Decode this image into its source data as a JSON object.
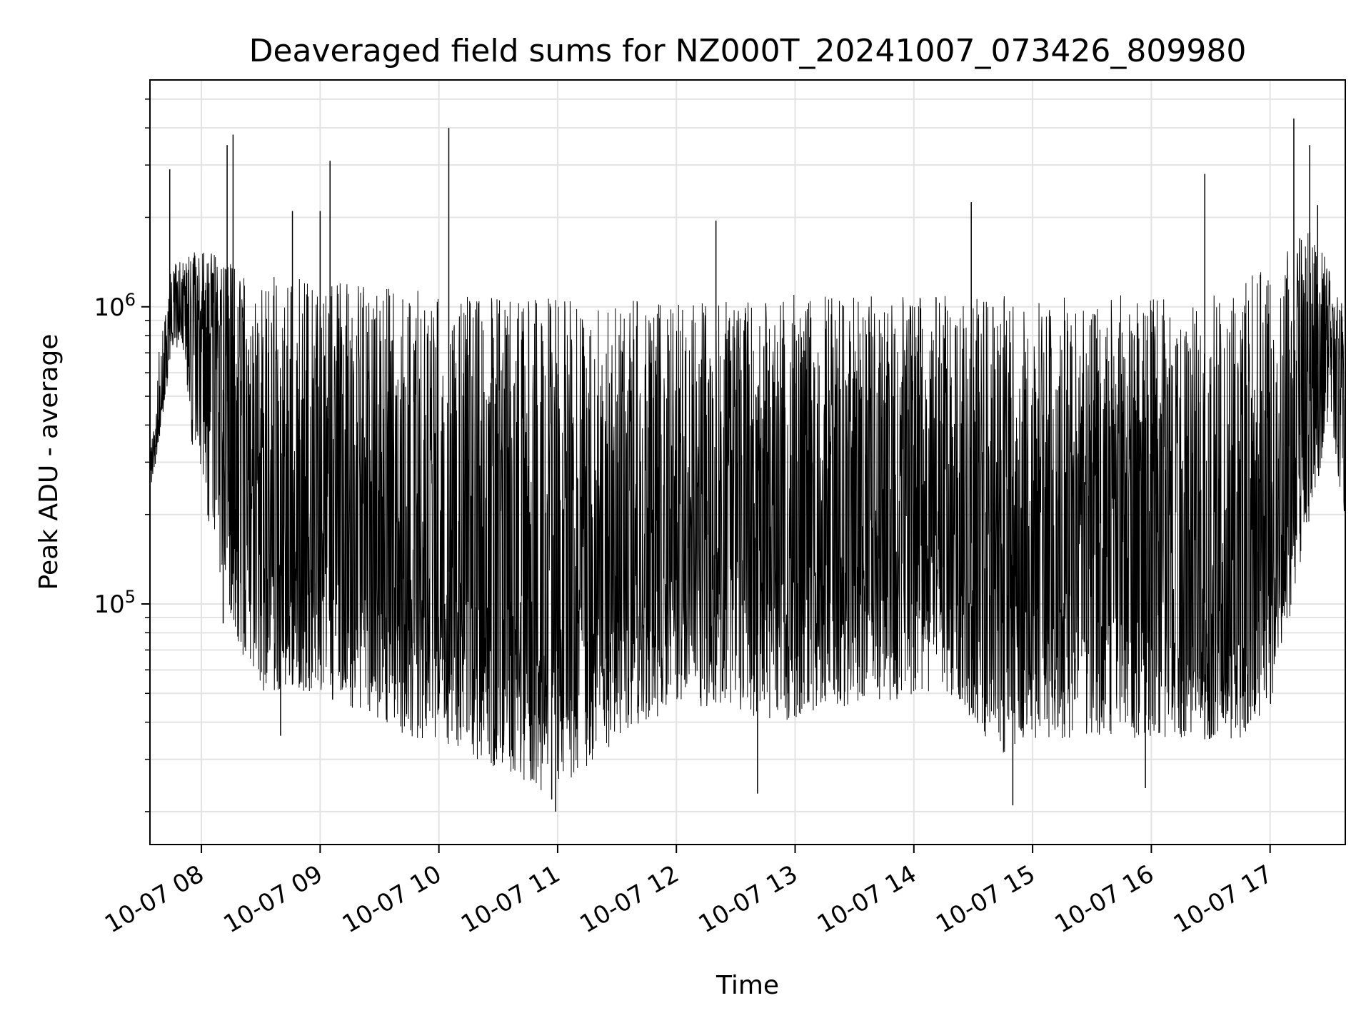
{
  "chart_data": {
    "type": "line",
    "title": "Deaveraged field sums for NZ000T_20241007_073426_809980",
    "xlabel": "Time",
    "ylabel": "Peak ADU - average",
    "yscale": "log",
    "ylim": [
      15500,
      5800000
    ],
    "xlim": [
      "2024-10-07 07:34",
      "2024-10-07 17:38"
    ],
    "grid": true,
    "line_color": "#000000",
    "x_ticks": [
      "10-07 08",
      "10-07 09",
      "10-07 10",
      "10-07 11",
      "10-07 12",
      "10-07 13",
      "10-07 14",
      "10-07 15",
      "10-07 16",
      "10-07 17"
    ],
    "y_ticks": [
      {
        "value": 100000,
        "base": "10",
        "exp": "5"
      },
      {
        "value": 1000000,
        "base": "10",
        "exp": "6"
      }
    ],
    "series": [
      {
        "x": [
          "07:35",
          "07:40",
          "07:45",
          "07:50",
          "07:55",
          "08:00",
          "08:10",
          "08:20",
          "08:30",
          "08:40",
          "08:50",
          "09:00",
          "09:15",
          "09:30",
          "09:45",
          "10:00",
          "10:15",
          "10:30",
          "10:45",
          "11:00",
          "11:15",
          "11:30",
          "11:45",
          "12:00",
          "12:15",
          "12:30",
          "12:45",
          "13:00",
          "13:15",
          "13:30",
          "13:45",
          "14:00",
          "14:15",
          "14:30",
          "14:45",
          "15:00",
          "15:15",
          "15:30",
          "15:45",
          "16:00",
          "16:15",
          "16:30",
          "16:45",
          "17:00",
          "17:10",
          "17:20",
          "17:30",
          "17:37"
        ],
        "median": [
          300000,
          500000,
          900000,
          1100000,
          900000,
          750000,
          550000,
          350000,
          220000,
          160000,
          140000,
          140000,
          140000,
          135000,
          130000,
          130000,
          125000,
          120000,
          115000,
          110000,
          115000,
          120000,
          130000,
          135000,
          140000,
          145000,
          150000,
          150000,
          150000,
          150000,
          155000,
          160000,
          165000,
          160000,
          140000,
          125000,
          120000,
          120000,
          115000,
          110000,
          105000,
          100000,
          105000,
          130000,
          250000,
          550000,
          800000,
          400000
        ],
        "low": [
          270000,
          400000,
          700000,
          750000,
          350000,
          250000,
          110000,
          65000,
          50000,
          50000,
          50000,
          48000,
          45000,
          40000,
          35000,
          35000,
          30000,
          28000,
          25000,
          22000,
          28000,
          35000,
          40000,
          45000,
          45000,
          45000,
          40000,
          40000,
          42000,
          45000,
          45000,
          50000,
          50000,
          40000,
          30000,
          35000,
          35000,
          35000,
          35000,
          35000,
          35000,
          35000,
          35000,
          45000,
          90000,
          170000,
          450000,
          200000
        ],
        "high": [
          500000,
          900000,
          1400000,
          1450000,
          1500000,
          1600000,
          1500000,
          1300000,
          1200000,
          1300000,
          1300000,
          1200000,
          1200000,
          1200000,
          1200000,
          1100000,
          1100000,
          1100000,
          1100000,
          1100000,
          1050000,
          1050000,
          1050000,
          1050000,
          1050000,
          1050000,
          1100000,
          1100000,
          1100000,
          1100000,
          1100000,
          1100000,
          1100000,
          1100000,
          1100000,
          1100000,
          1100000,
          1100000,
          1100000,
          1100000,
          1050000,
          1100000,
          1200000,
          1400000,
          1600000,
          1800000,
          1400000,
          1000000
        ]
      }
    ],
    "spikes": [
      {
        "x": "07:44",
        "y": 2900000
      },
      {
        "x": "08:13",
        "y": 3500000
      },
      {
        "x": "08:16",
        "y": 3800000
      },
      {
        "x": "08:46",
        "y": 2100000
      },
      {
        "x": "09:00",
        "y": 2100000
      },
      {
        "x": "09:05",
        "y": 3100000
      },
      {
        "x": "10:05",
        "y": 4000000
      },
      {
        "x": "12:20",
        "y": 1950000
      },
      {
        "x": "14:29",
        "y": 2250000
      },
      {
        "x": "16:27",
        "y": 2800000
      },
      {
        "x": "17:12",
        "y": 4300000
      },
      {
        "x": "17:15",
        "y": 1700000
      },
      {
        "x": "17:20",
        "y": 3500000
      },
      {
        "x": "17:24",
        "y": 2200000
      },
      {
        "x": "10:57",
        "y": 22000
      },
      {
        "x": "10:59",
        "y": 20000
      },
      {
        "x": "12:41",
        "y": 23000
      },
      {
        "x": "14:50",
        "y": 21000
      },
      {
        "x": "15:57",
        "y": 24000
      },
      {
        "x": "08:11",
        "y": 86000
      },
      {
        "x": "08:40",
        "y": 36000
      }
    ]
  }
}
